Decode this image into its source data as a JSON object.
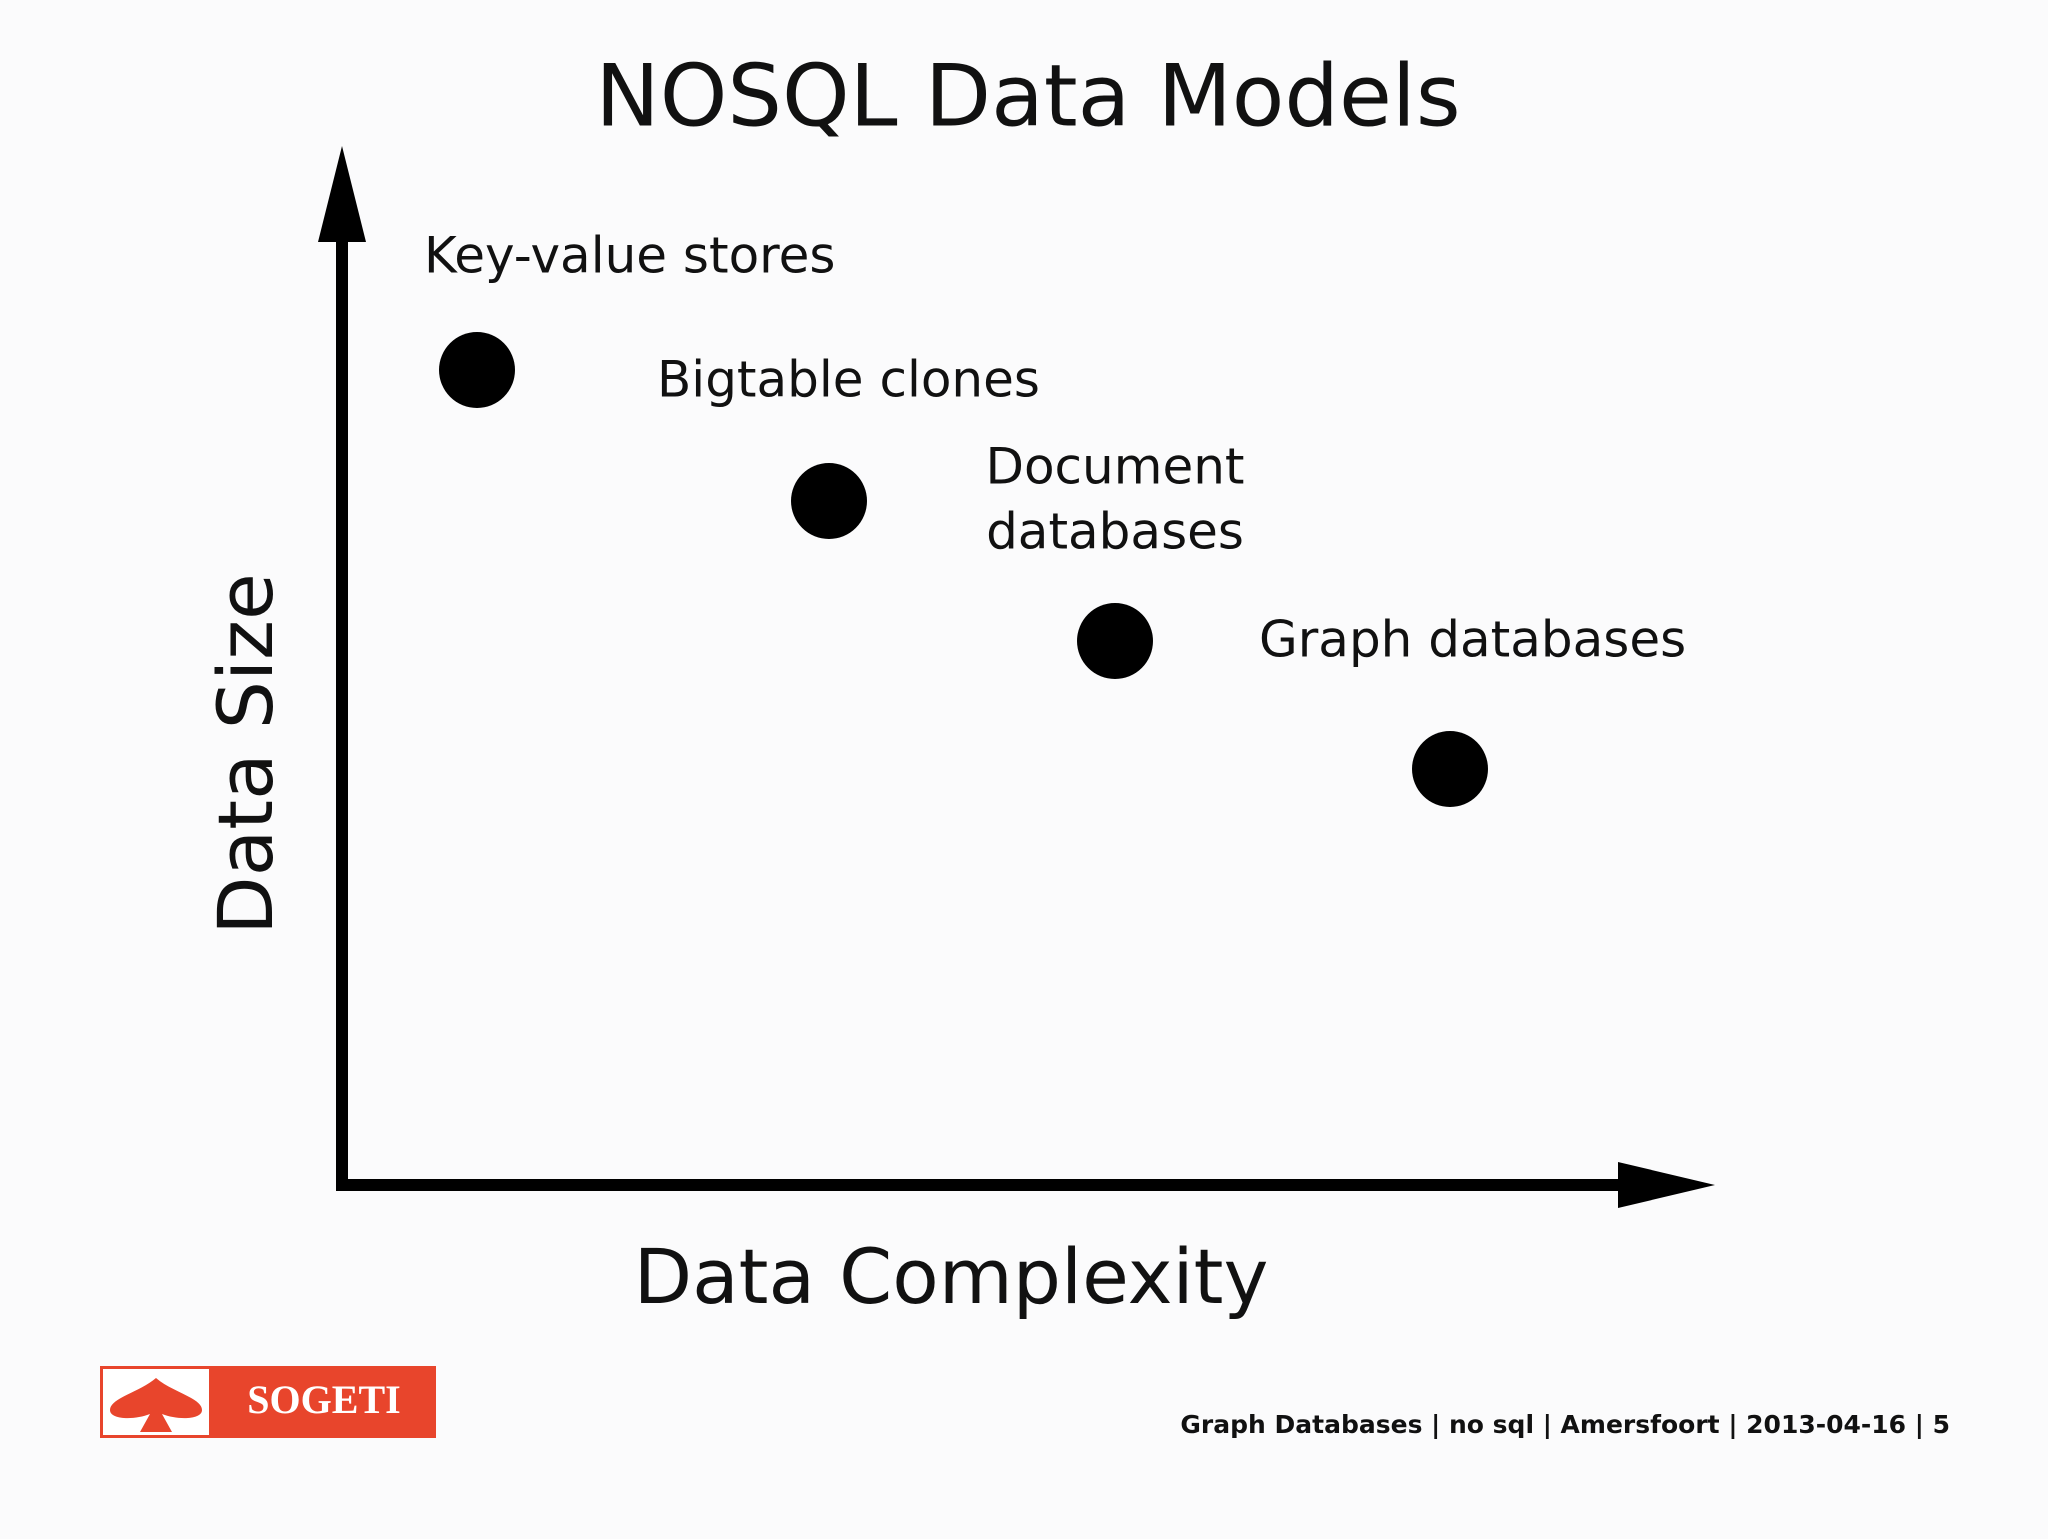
{
  "title": "NOSQL Data Models",
  "axes": {
    "y_label": "Data Size",
    "x_label": "Data Complexity"
  },
  "nodes": [
    {
      "label": [
        "Key-value stores"
      ]
    },
    {
      "label": [
        "Bigtable clones"
      ]
    },
    {
      "label": [
        "Document",
        "databases"
      ]
    },
    {
      "label": [
        "Graph databases"
      ]
    }
  ],
  "logo": "SOGETI",
  "footer": "Graph Databases | no sql | Amersfoort | 2013-04-16 | 5"
}
